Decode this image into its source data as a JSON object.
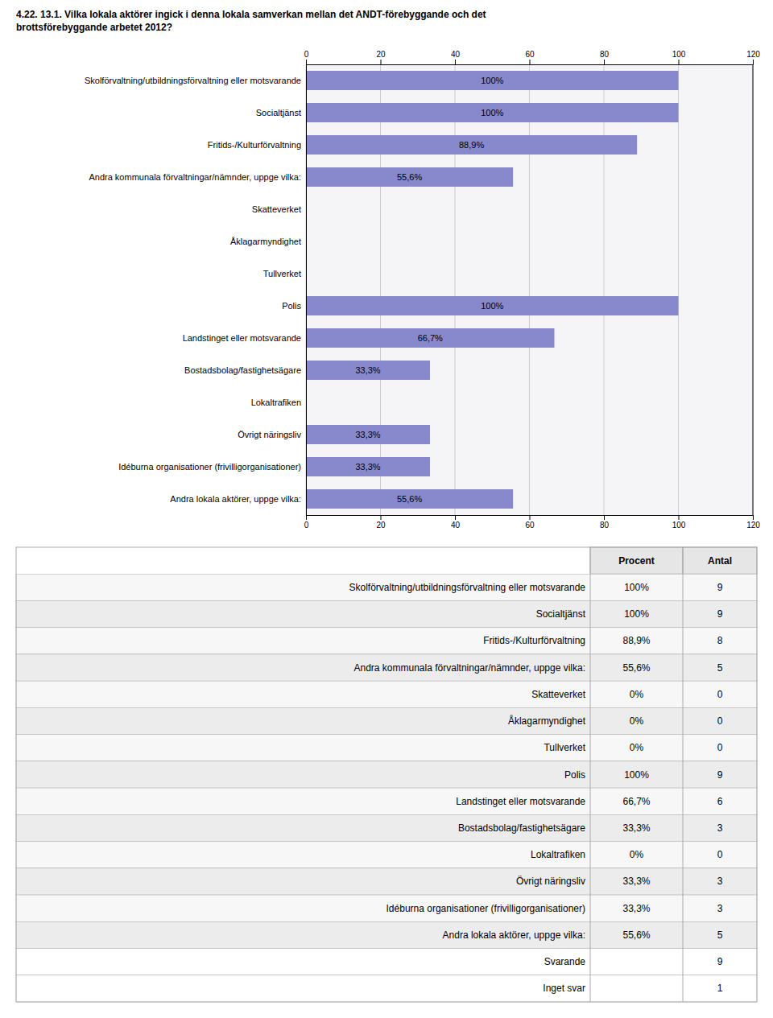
{
  "chart_data": [
    {
      "type": "bar",
      "orientation": "horizontal",
      "title": "4.22. 13.1. Vilka lokala aktörer ingick i denna lokala samverkan mellan det ANDT-förebyggande och det\nbrottsförebyggande arbetet 2012?",
      "categories": [
        "Skolförvaltning/utbildningsförvaltning eller motsvarande",
        "Socialtjänst",
        "Fritids-/Kulturförvaltning",
        "Andra kommunala förvaltningar/nämnder, uppge vilka:",
        "Skatteverket",
        "Åklagarmyndighet",
        "Tullverket",
        "Polis",
        "Landstinget eller motsvarande",
        "Bostadsbolag/fastighetsägare",
        "Lokaltrafiken",
        "Övrigt näringsliv",
        "Idéburna organisationer (frivilligorganisationer)",
        "Andra lokala aktörer, uppge vilka:"
      ],
      "values": [
        100,
        100,
        88.9,
        55.6,
        0,
        0,
        0,
        100,
        66.7,
        33.3,
        0,
        33.3,
        33.3,
        55.6
      ],
      "value_labels": [
        "100%",
        "100%",
        "88,9%",
        "55,6%",
        null,
        null,
        null,
        "100%",
        "66,7%",
        "33,3%",
        null,
        "33,3%",
        "33,3%",
        "55,6%"
      ],
      "data_labels": true,
      "color": "#8888cc",
      "xlim": [
        0,
        120
      ],
      "xticks": [
        0,
        20,
        40,
        60,
        80,
        100,
        120
      ],
      "grid": true
    },
    {
      "type": "table",
      "columns": [
        "Procent",
        "Antal"
      ],
      "categories": [
        "Skolförvaltning/utbildningsförvaltning eller motsvarande",
        "Socialtjänst",
        "Fritids-/Kulturförvaltning",
        "Andra kommunala förvaltningar/nämnder, uppge vilka:",
        "Skatteverket",
        "Åklagarmyndighet",
        "Tullverket",
        "Polis",
        "Landstinget eller motsvarande",
        "Bostadsbolag/fastighetsägare",
        "Lokaltrafiken",
        "Övrigt näringsliv",
        "Idéburna organisationer (frivilligorganisationer)",
        "Andra lokala aktörer, uppge vilka:"
      ],
      "values": [
        100,
        100,
        88.9,
        55.6,
        0,
        0,
        0,
        100,
        66.7,
        33.3,
        0,
        33.3,
        33.3,
        55.6
      ],
      "value_labels": [
        "100%",
        "100%",
        "88,9%",
        "55,6%",
        "0%",
        "0%",
        "0%",
        "100%",
        "66,7%",
        "33,3%",
        "0%",
        "33,3%",
        "33,3%",
        "55,6%"
      ],
      "counts": [
        9,
        9,
        8,
        5,
        0,
        0,
        0,
        9,
        6,
        3,
        0,
        3,
        3,
        5
      ],
      "footer": [
        {
          "label": "Svarande",
          "value": 9
        },
        {
          "label": "Inget svar",
          "value": 1
        }
      ]
    }
  ]
}
